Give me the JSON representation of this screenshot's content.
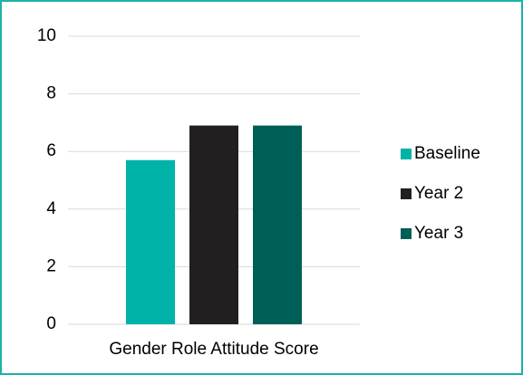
{
  "chart_data": {
    "type": "bar",
    "categories": [
      "Gender Role Attitude Score"
    ],
    "series": [
      {
        "name": "Baseline",
        "color": "#00b3a9",
        "values": [
          5.7
        ]
      },
      {
        "name": "Year 2",
        "color": "#231f20",
        "values": [
          6.9
        ]
      },
      {
        "name": "Year 3",
        "color": "#005e58",
        "values": [
          6.9
        ]
      }
    ],
    "ylim": [
      0,
      10
    ],
    "yticks": [
      0,
      2,
      4,
      6,
      8,
      10
    ],
    "grid": true,
    "legend": "right"
  }
}
